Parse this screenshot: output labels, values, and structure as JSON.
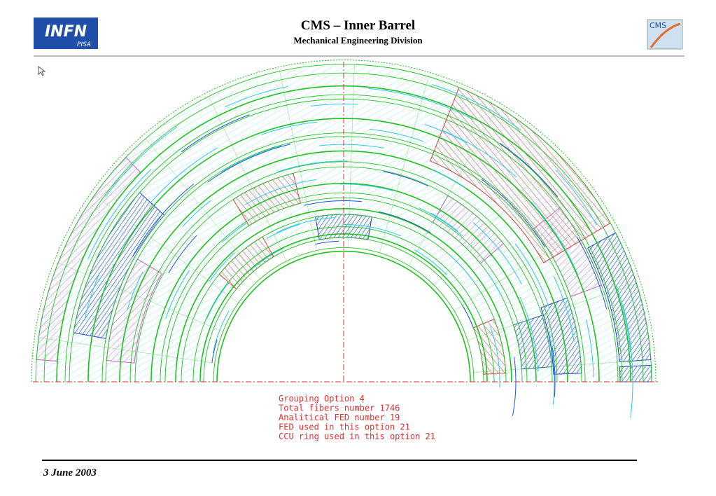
{
  "header": {
    "title": "CMS – Inner Barrel",
    "subtitle": "Mechanical Engineering Division",
    "left_logo": {
      "text": "INFN",
      "subtext": "PISA"
    },
    "right_logo": {
      "text": "CMS"
    }
  },
  "drawing": {
    "notes": [
      "Grouping Option 4",
      "Total fibers number 1746",
      "Analitical FED number 19",
      "FED used in this option 21",
      "CCU ring used in this option 21"
    ]
  },
  "footer": {
    "date": "3 June 2003"
  }
}
